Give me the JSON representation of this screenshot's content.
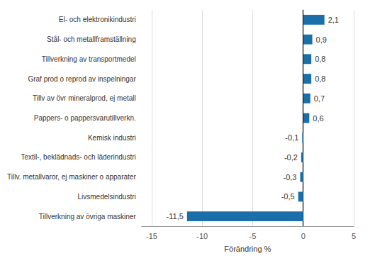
{
  "chart_data": {
    "type": "bar",
    "orientation": "horizontal",
    "categories": [
      "Tillverkning av övriga maskiner",
      "Livsmedelsindustri",
      "Tillv. metallvaror, ej maskiner o apparater",
      "Textil-, beklädnads- och läderindustri",
      "Kemisk industri",
      "Pappers- o pappersvarutillverkn.",
      "Tillv av övr mineralprod, ej metall",
      "Graf prod o reprod av inspelningar",
      "Tillverkning av transportmedel",
      "Stål- och metallframställning",
      "El- och elektronikindustri"
    ],
    "values": [
      -11.5,
      -0.5,
      -0.3,
      -0.2,
      -0.1,
      0.6,
      0.7,
      0.8,
      0.8,
      0.9,
      2.1
    ],
    "value_labels": [
      "-11,5",
      "-0,5",
      "-0,3",
      "-0,2",
      "-0,1",
      "0,6",
      "0,7",
      "0,8",
      "0,8",
      "0,9",
      "2,1"
    ],
    "data_labels": true,
    "color": "#1a6fa8",
    "xlabel": "Förändring %",
    "xlim": [
      -16,
      5
    ],
    "xticks": [
      -15,
      -10,
      -5,
      0,
      5
    ],
    "grid": true
  }
}
